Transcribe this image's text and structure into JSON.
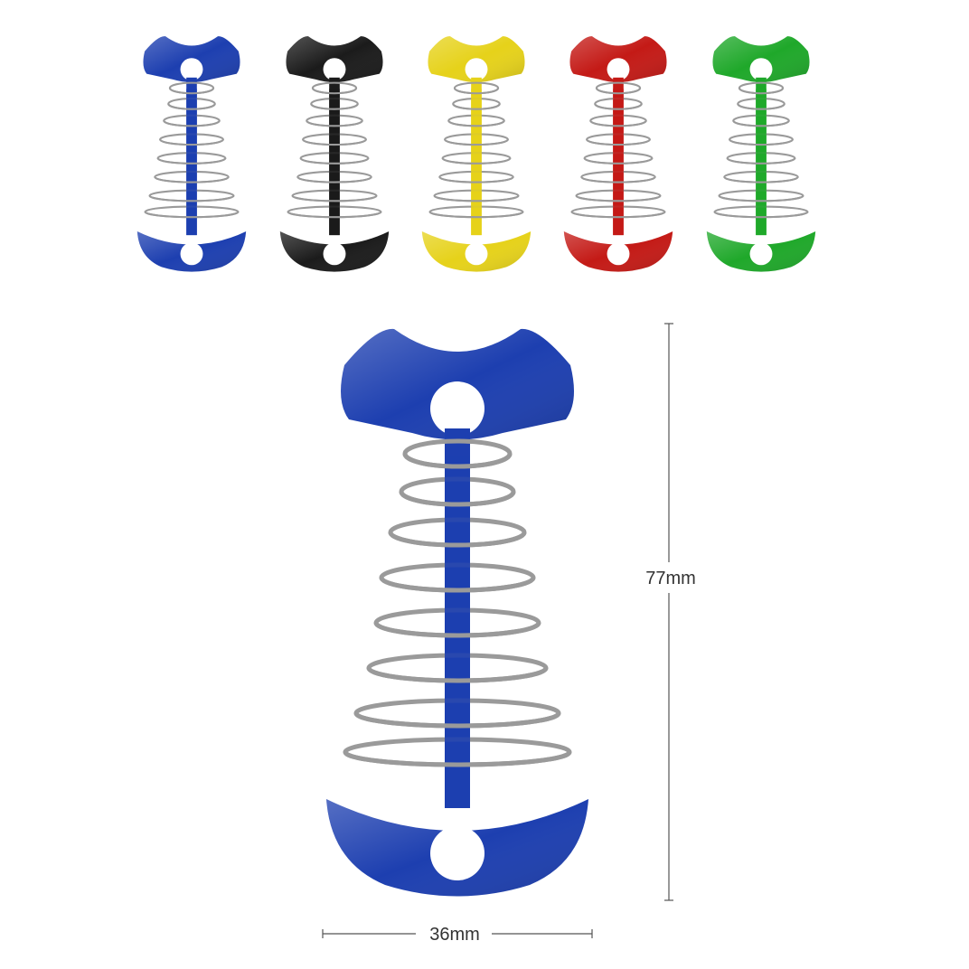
{
  "product": {
    "color_variants": [
      {
        "name": "blue",
        "color": "#1d3fb0"
      },
      {
        "name": "black",
        "color": "#1b1b1b"
      },
      {
        "name": "yellow",
        "color": "#e6d21a"
      },
      {
        "name": "red",
        "color": "#c41a16"
      },
      {
        "name": "green",
        "color": "#1fa82a"
      }
    ],
    "featured_color": "#1d3fb0",
    "spring_color": "#9a9a9a"
  },
  "dimensions": {
    "height_label": "77mm",
    "width_label": "36mm"
  }
}
